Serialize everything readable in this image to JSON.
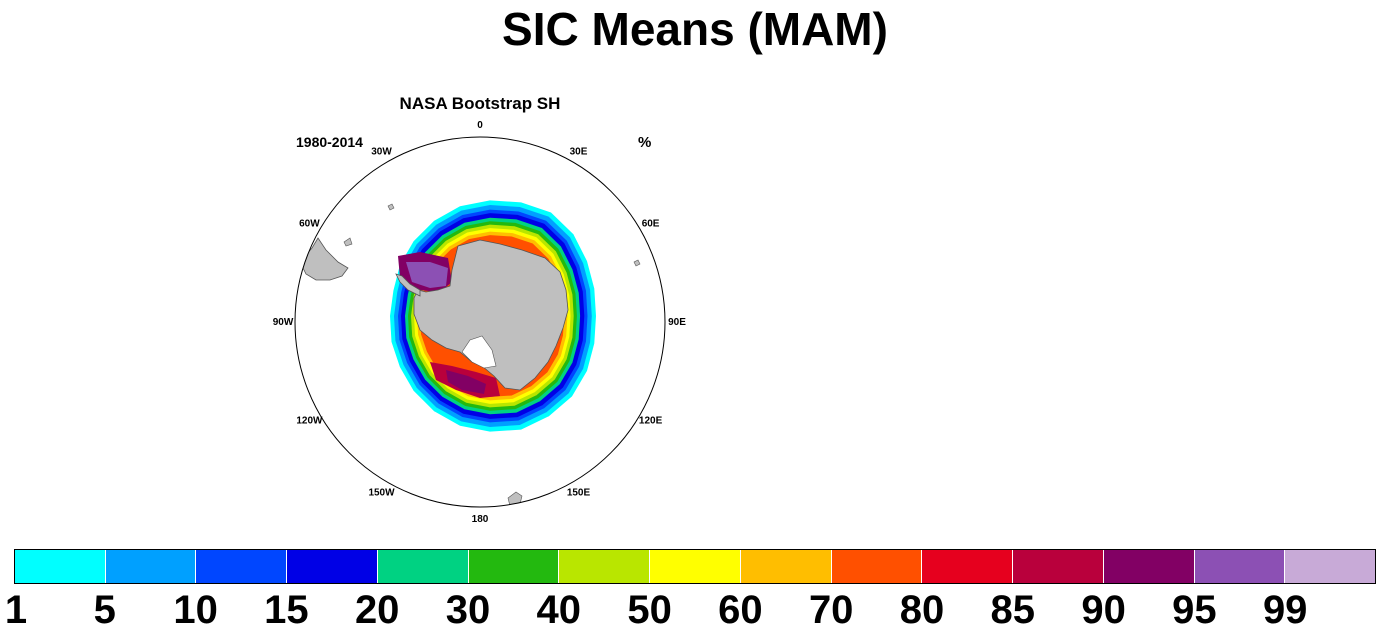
{
  "title": "SIC Means (MAM)",
  "subtitle": "NASA Bootstrap SH",
  "left_string": "1980-2014",
  "right_string": "%",
  "longitude_labels": [
    {
      "label": "0",
      "lon": 0
    },
    {
      "label": "30E",
      "lon": 30
    },
    {
      "label": "60E",
      "lon": 60
    },
    {
      "label": "90E",
      "lon": 90
    },
    {
      "label": "120E",
      "lon": 120
    },
    {
      "label": "150E",
      "lon": 150
    },
    {
      "label": "180",
      "lon": 180
    },
    {
      "label": "150W",
      "lon": -150
    },
    {
      "label": "120W",
      "lon": -120
    },
    {
      "label": "90W",
      "lon": -90
    },
    {
      "label": "60W",
      "lon": -60
    },
    {
      "label": "30W",
      "lon": -30
    }
  ],
  "colors": {
    "land": "#bfbfbf",
    "coast": "#555555",
    "ice_boxes": [
      "#00ffff",
      "#00a0ff",
      "#0046ff",
      "#0000e6",
      "#00d282",
      "#23b90f",
      "#b9e600",
      "#ffff00",
      "#ffbe00",
      "#ff5000",
      "#e6001e",
      "#b9003c",
      "#820064",
      "#8c50b4",
      "#c8aad7"
    ]
  },
  "legend": {
    "labels": [
      "1",
      "5",
      "10",
      "15",
      "20",
      "30",
      "40",
      "50",
      "60",
      "70",
      "80",
      "85",
      "90",
      "95",
      "99"
    ]
  }
}
